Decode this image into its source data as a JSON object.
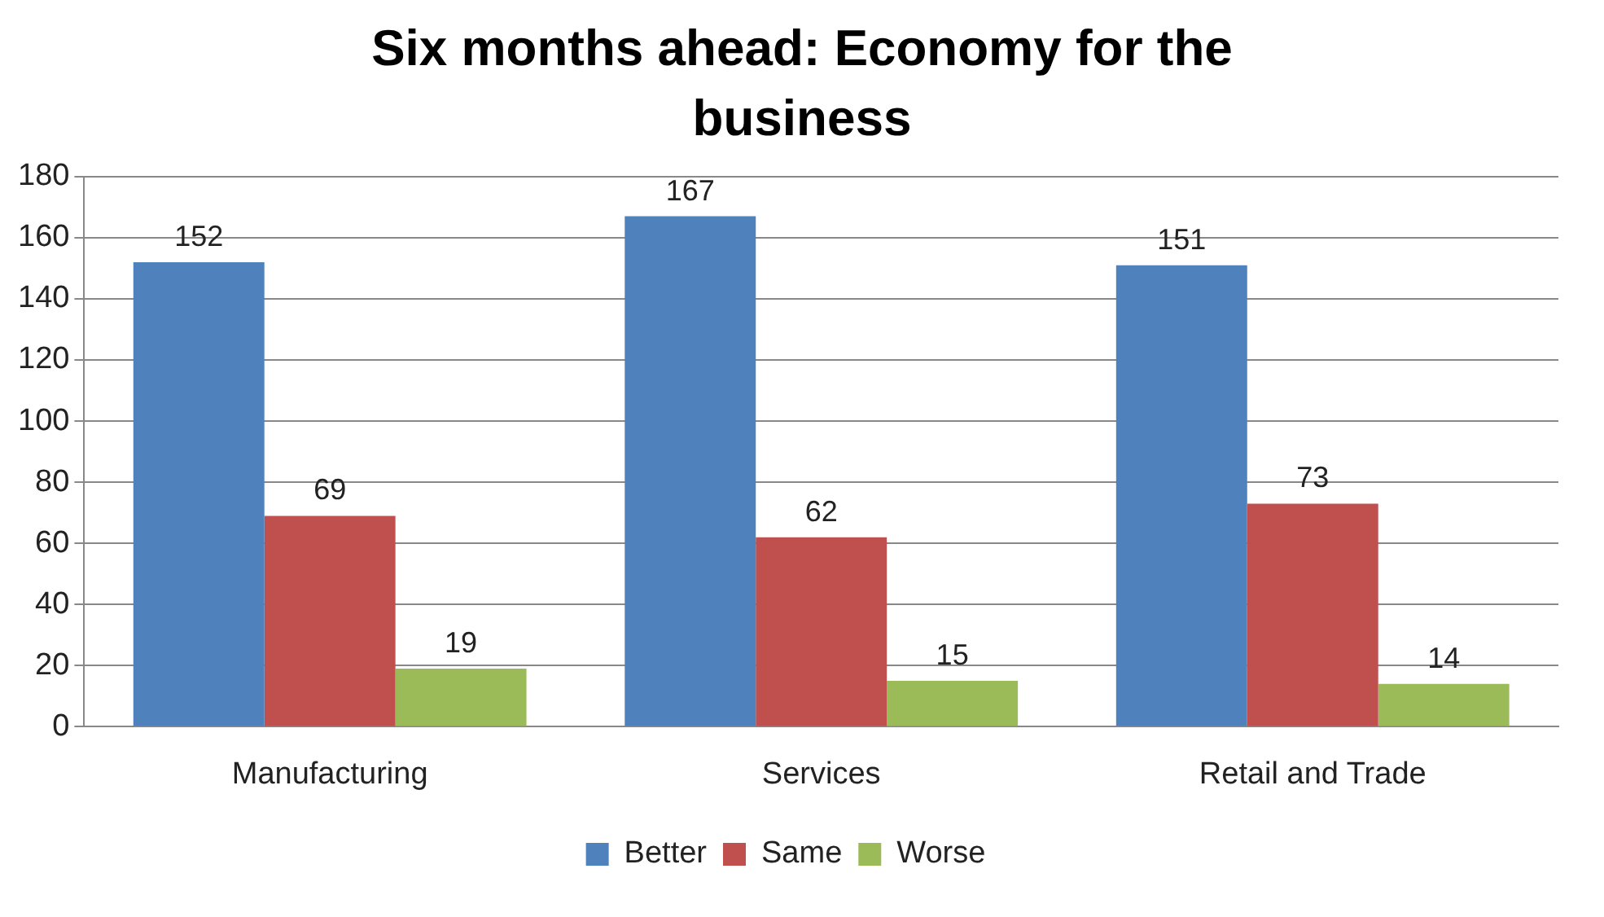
{
  "chart_data": {
    "type": "bar",
    "title": "Six months ahead: Economy for the business",
    "categories": [
      "Manufacturing",
      "Services",
      "Retail and Trade"
    ],
    "series": [
      {
        "name": "Better",
        "color": "#4f81bd",
        "values": [
          152,
          167,
          151
        ]
      },
      {
        "name": "Same",
        "color": "#c0504d",
        "values": [
          69,
          62,
          73
        ]
      },
      {
        "name": "Worse",
        "color": "#9bbb59",
        "values": [
          19,
          15,
          14
        ]
      }
    ],
    "ylim": [
      0,
      180
    ],
    "yticks": [
      0,
      20,
      40,
      60,
      80,
      100,
      120,
      140,
      160,
      180
    ],
    "grid": "y",
    "legend": "bottom",
    "data_labels": true
  }
}
